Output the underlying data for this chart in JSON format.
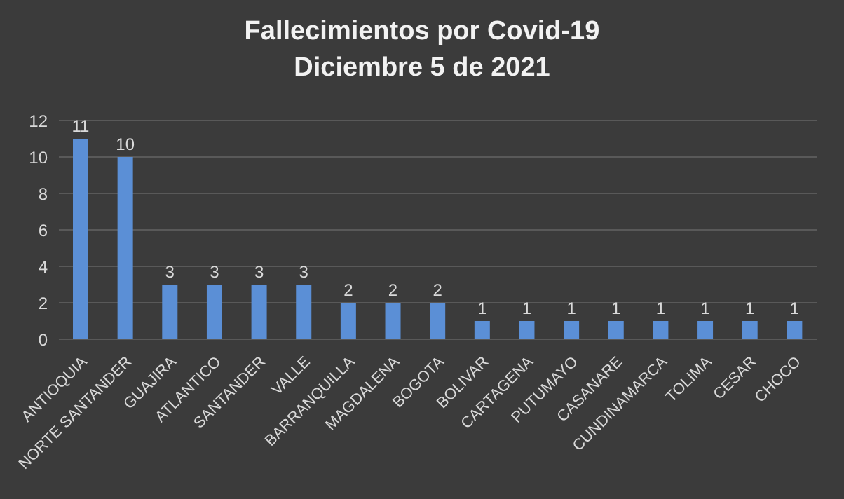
{
  "chart_data": {
    "type": "bar",
    "title": "Fallecimientos por Covid-19",
    "subtitle": "Diciembre 5 de 2021",
    "categories": [
      "ANTIOQUIA",
      "NORTE SANTANDER",
      "GUAJIRA",
      "ATLANTICO",
      "SANTANDER",
      "VALLE",
      "BARRANQUILLA",
      "MAGDALENA",
      "BOGOTA",
      "BOLIVAR",
      "CARTAGENA",
      "PUTUMAYO",
      "CASANARE",
      "CUNDINAMARCA",
      "TOLIMA",
      "CESAR",
      "CHOCO"
    ],
    "values": [
      11,
      10,
      3,
      3,
      3,
      3,
      2,
      2,
      2,
      1,
      1,
      1,
      1,
      1,
      1,
      1,
      1
    ],
    "color": "#5b8fd6",
    "ylim": [
      0,
      12
    ],
    "yticks": [
      0,
      2,
      4,
      6,
      8,
      10,
      12
    ],
    "grid": "y",
    "data_labels": true,
    "legend": false
  }
}
